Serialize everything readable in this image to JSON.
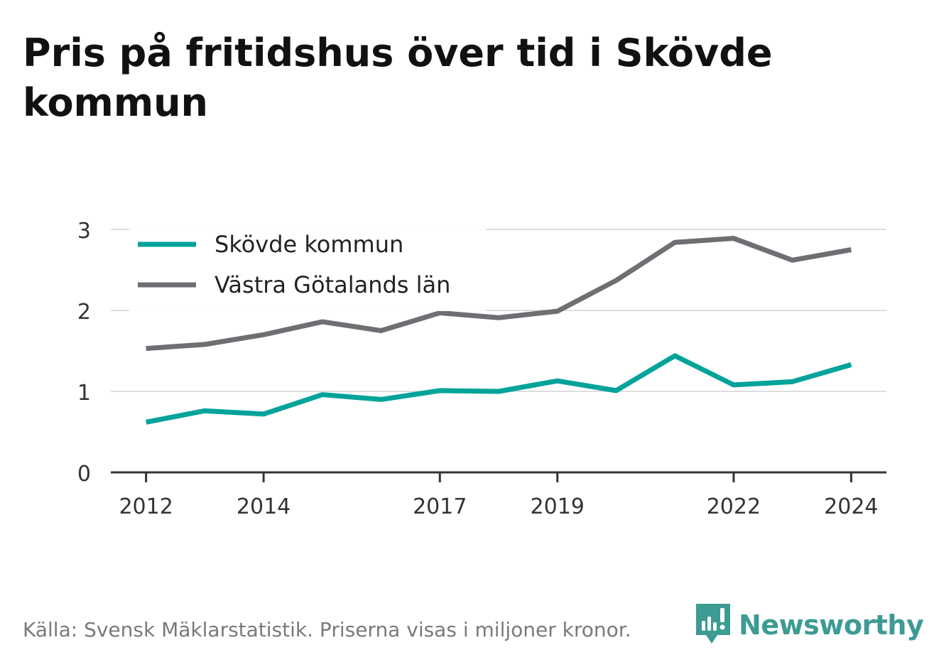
{
  "title": "Pris på fritidshus över tid i Skövde kommun",
  "source": "Källa: Svensk Mäklarstatistik. Priserna visas i miljoner kronor.",
  "brand": "Newsworthy",
  "chart_data": {
    "type": "line",
    "title": "Pris på fritidshus över tid i Skövde kommun",
    "x": [
      2012,
      2013,
      2014,
      2015,
      2016,
      2017,
      2018,
      2019,
      2020,
      2021,
      2022,
      2023,
      2024
    ],
    "x_ticks": [
      "2012",
      "2014",
      "2017",
      "2019",
      "2022",
      "2024"
    ],
    "y_ticks": [
      "0",
      "1",
      "2",
      "3"
    ],
    "ylim": [
      0,
      3
    ],
    "xlim": [
      2011.4,
      2024.6
    ],
    "grid": true,
    "legend_position": "top-left",
    "series": [
      {
        "name": "Skövde kommun",
        "color": "#00a39a",
        "values": [
          0.62,
          0.76,
          0.72,
          0.96,
          0.9,
          1.01,
          1.0,
          1.13,
          1.01,
          1.44,
          1.08,
          1.12,
          1.33
        ]
      },
      {
        "name": "Västra Götalands län",
        "color": "#6e6e73",
        "values": [
          1.53,
          1.58,
          1.7,
          1.86,
          1.75,
          1.97,
          1.91,
          1.99,
          2.37,
          2.84,
          2.89,
          2.62,
          2.75
        ]
      }
    ]
  },
  "colors": {
    "grid": "#dddddd",
    "axis": "#333333",
    "tick_text": "#333333",
    "brand": "#3d9b94"
  }
}
